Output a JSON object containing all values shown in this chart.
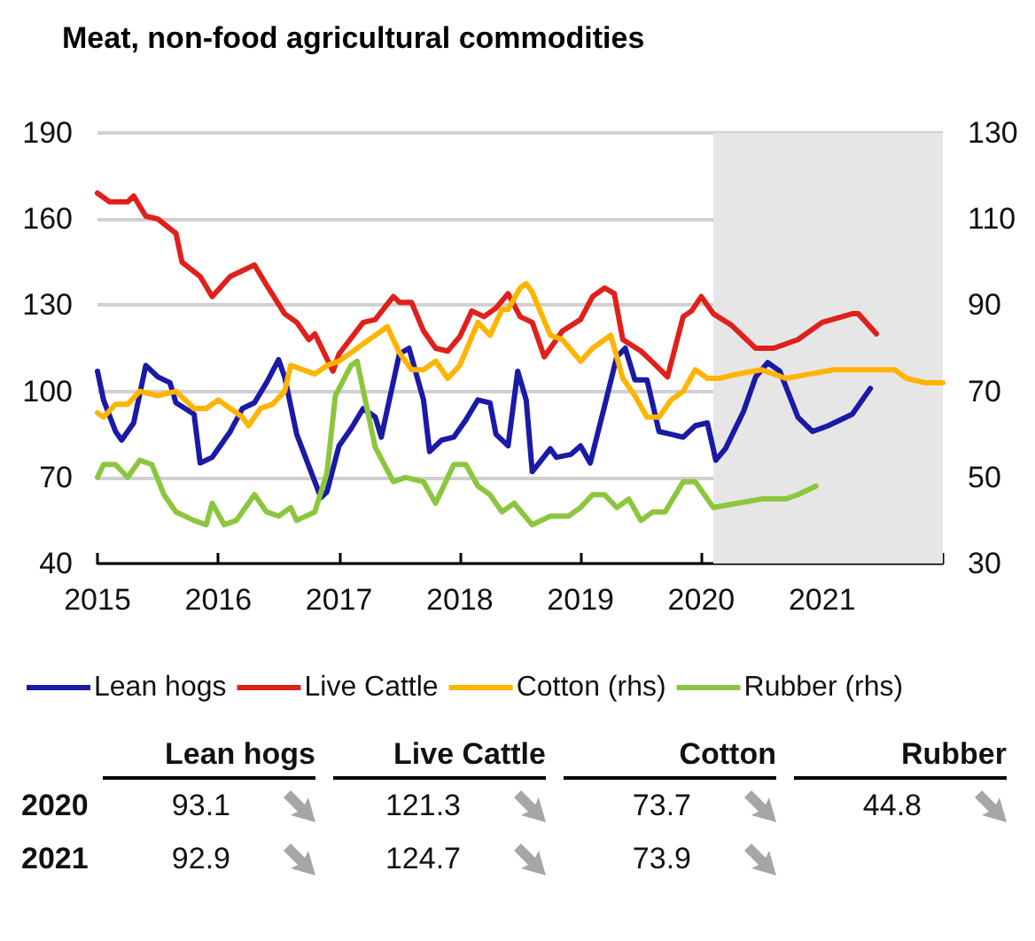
{
  "chart_data": [
    {
      "type": "line",
      "title": "Meat, non-food agricultural commodities",
      "xlim": [
        2015,
        2022
      ],
      "xticks": [
        2015,
        2016,
        2017,
        2018,
        2019,
        2020,
        2021,
        {
          "value": 2022,
          "label": null
        }
      ],
      "ylim": [
        40,
        190
      ],
      "yticks": [
        40,
        70,
        100,
        130,
        160,
        190
      ],
      "y2lim": [
        30,
        130
      ],
      "y2ticks": [
        30,
        50,
        70,
        90,
        110,
        130
      ],
      "grid": "y",
      "legend": "bottom",
      "marker": "none",
      "line_style": "solid",
      "bands": [
        {
          "axis": "x",
          "from": 2020.1,
          "to": 2022,
          "color": "#e6e6e6"
        }
      ],
      "series": [
        {
          "name": "Lean hogs",
          "color": "#1a1aa6",
          "x": [
            2015.0,
            2015.05,
            2015.15,
            2015.2,
            2015.3,
            2015.4,
            2015.5,
            2015.6,
            2015.65,
            2015.8,
            2015.85,
            2015.95,
            2016.1,
            2016.2,
            2016.3,
            2016.4,
            2016.5,
            2016.55,
            2016.65,
            2016.75,
            2016.85,
            2016.9,
            2017.0,
            2017.1,
            2017.2,
            2017.3,
            2017.35,
            2017.5,
            2017.58,
            2017.7,
            2017.75,
            2017.85,
            2017.95,
            2018.05,
            2018.15,
            2018.25,
            2018.3,
            2018.4,
            2018.48,
            2018.55,
            2018.6,
            2018.75,
            2018.8,
            2018.92,
            2019.0,
            2019.08,
            2019.2,
            2019.3,
            2019.37,
            2019.45,
            2019.55,
            2019.65,
            2019.75,
            2019.85,
            2019.95,
            2020.05,
            2020.12,
            2020.2,
            2020.35,
            2020.45,
            2020.55,
            2020.65,
            2020.8,
            2020.92,
            2021.05,
            2021.25,
            2021.4
          ],
          "values": [
            107,
            97,
            86,
            83,
            89,
            109,
            105,
            103,
            96,
            92,
            75,
            77,
            86,
            94,
            96,
            103,
            111,
            105,
            85,
            74,
            63,
            65,
            81,
            87,
            94,
            91,
            84,
            113,
            115,
            97,
            79,
            83,
            84,
            90,
            97,
            96,
            85,
            81,
            107,
            97,
            72,
            80,
            77,
            78,
            81,
            75,
            95,
            112,
            115,
            104,
            104,
            86,
            85,
            84,
            88,
            89,
            76,
            80,
            93,
            105,
            110,
            107,
            91,
            86,
            88,
            92,
            101
          ]
        },
        {
          "name": "Live Cattle",
          "color": "#e0201b",
          "x": [
            2015.0,
            2015.1,
            2015.25,
            2015.3,
            2015.4,
            2015.5,
            2015.65,
            2015.7,
            2015.85,
            2015.95,
            2016.1,
            2016.3,
            2016.4,
            2016.55,
            2016.65,
            2016.75,
            2016.8,
            2016.95,
            2017.0,
            2017.2,
            2017.3,
            2017.45,
            2017.5,
            2017.6,
            2017.7,
            2017.8,
            2017.9,
            2018.0,
            2018.1,
            2018.2,
            2018.3,
            2018.4,
            2018.5,
            2018.6,
            2018.7,
            2018.85,
            2019.0,
            2019.1,
            2019.2,
            2019.28,
            2019.35,
            2019.5,
            2019.6,
            2019.72,
            2019.85,
            2019.92,
            2020.0,
            2020.1,
            2020.25,
            2020.45,
            2020.6,
            2020.8,
            2021.0,
            2021.25,
            2021.3,
            2021.45
          ],
          "values": [
            169,
            166,
            166,
            168,
            161,
            160,
            155,
            145,
            140,
            133,
            140,
            144,
            137,
            127,
            124,
            118,
            120,
            107,
            113,
            124,
            125,
            133,
            131,
            131,
            121,
            115,
            114,
            119,
            128,
            126,
            129,
            134,
            126,
            124,
            112,
            121,
            125,
            133,
            136,
            134,
            118,
            114,
            110,
            105,
            126,
            128,
            133,
            127,
            123,
            115,
            115,
            118,
            124,
            127,
            127,
            120
          ]
        },
        {
          "name": "Cotton (rhs)",
          "color": "#ffb400",
          "axis": "y2",
          "x": [
            2015.0,
            2015.05,
            2015.15,
            2015.25,
            2015.35,
            2015.5,
            2015.65,
            2015.8,
            2015.9,
            2016.0,
            2016.1,
            2016.2,
            2016.25,
            2016.35,
            2016.45,
            2016.55,
            2016.6,
            2016.8,
            2016.9,
            2017.0,
            2017.2,
            2017.3,
            2017.4,
            2017.5,
            2017.6,
            2017.7,
            2017.8,
            2017.9,
            2018.0,
            2018.15,
            2018.25,
            2018.35,
            2018.4,
            2018.5,
            2018.55,
            2018.6,
            2018.75,
            2018.85,
            2019.0,
            2019.1,
            2019.25,
            2019.35,
            2019.45,
            2019.55,
            2019.65,
            2019.75,
            2019.85,
            2019.95,
            2020.05,
            2020.15,
            2020.3,
            2020.5,
            2020.7,
            2020.9,
            2021.1,
            2021.3,
            2021.5,
            2021.6,
            2021.7,
            2021.85,
            2022.0
          ],
          "values": [
            65,
            64,
            67,
            67,
            70,
            69,
            70,
            66,
            66,
            68,
            66,
            64,
            62,
            66,
            67,
            70,
            76,
            74,
            76,
            77,
            81,
            83,
            85,
            79,
            75,
            75,
            77,
            73,
            76,
            86,
            83,
            89,
            89,
            94,
            95,
            93,
            83,
            82,
            77,
            80,
            83,
            73,
            69,
            64,
            64,
            68,
            70,
            75,
            73,
            73,
            74,
            75,
            73,
            74,
            75,
            75,
            75,
            75,
            73,
            72,
            72
          ]
        },
        {
          "name": "Rubber (rhs)",
          "color": "#8cc63f",
          "axis": "y2",
          "x": [
            2015.0,
            2015.05,
            2015.15,
            2015.25,
            2015.35,
            2015.45,
            2015.55,
            2015.65,
            2015.8,
            2015.9,
            2015.95,
            2016.05,
            2016.15,
            2016.3,
            2016.4,
            2016.5,
            2016.6,
            2016.65,
            2016.8,
            2016.9,
            2016.97,
            2017.1,
            2017.15,
            2017.3,
            2017.45,
            2017.55,
            2017.7,
            2017.8,
            2017.95,
            2018.05,
            2018.15,
            2018.25,
            2018.35,
            2018.45,
            2018.6,
            2018.75,
            2018.9,
            2019.0,
            2019.1,
            2019.2,
            2019.3,
            2019.4,
            2019.5,
            2019.6,
            2019.7,
            2019.85,
            2019.95,
            2020.1,
            2020.3,
            2020.5,
            2020.7,
            2020.8,
            2020.95
          ],
          "values": [
            50,
            53,
            53,
            50,
            54,
            53,
            46,
            42,
            40,
            39,
            44,
            39,
            40,
            46,
            42,
            41,
            43,
            40,
            42,
            51,
            69,
            76,
            77,
            57,
            49,
            50,
            49,
            44,
            53,
            53,
            48,
            46,
            42,
            44,
            39,
            41,
            41,
            43,
            46,
            46,
            43,
            45,
            40,
            42,
            42,
            49,
            49,
            43,
            44,
            45,
            45,
            46,
            48
          ]
        }
      ]
    },
    {
      "type": "other",
      "categories": [
        "Lean hogs",
        "Live Cattle",
        "Cotton",
        "Rubber"
      ],
      "y_categories": [
        "2020",
        "2021"
      ],
      "cell_labels": [
        [
          "93.1",
          "121.3",
          "73.7",
          "44.8"
        ],
        [
          "92.9",
          "124.7",
          "73.9",
          null
        ]
      ]
    }
  ]
}
